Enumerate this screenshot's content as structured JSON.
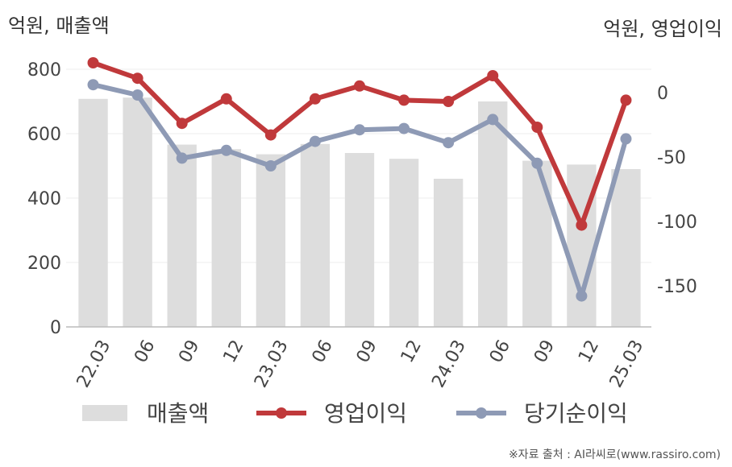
{
  "units": {
    "left": "억원, 매출액",
    "right": "억원, 영업이익"
  },
  "source": "※자료 출처 : AI라씨로(www.rassiro.com)",
  "chart_data": {
    "type": "bar",
    "categories": [
      "22.03",
      "06",
      "09",
      "12",
      "23.03",
      "06",
      "09",
      "12",
      "24.03",
      "06",
      "09",
      "12",
      "25.03"
    ],
    "left_axis": {
      "ylim": [
        0,
        800
      ],
      "ticks": [
        0,
        200,
        400,
        600,
        800
      ]
    },
    "right_axis": {
      "ylim": [
        -182,
        18
      ],
      "ticks": [
        0,
        -50,
        -100,
        -150
      ],
      "tick_labels": [
        "0",
        "-50",
        "-100",
        "-150"
      ]
    },
    "series": [
      {
        "name": "매출액",
        "kind": "bar",
        "axis": "left",
        "color": "#dddddd",
        "values": [
          708,
          712,
          566,
          552,
          536,
          568,
          540,
          522,
          460,
          700,
          516,
          504,
          490
        ]
      },
      {
        "name": "영업이익",
        "kind": "line",
        "axis": "right",
        "color": "#c0393b",
        "values": [
          23,
          11,
          -24,
          -5,
          -33,
          -5,
          5,
          -6,
          -7,
          13,
          -27,
          -103,
          -6
        ]
      },
      {
        "name": "당기순이익",
        "kind": "line",
        "axis": "right",
        "color": "#8e9ab5",
        "values": [
          6,
          -2,
          -51,
          -45,
          -57,
          -38,
          -29,
          -28,
          -39,
          -21,
          -55,
          -158,
          -36
        ]
      }
    ],
    "legend": {
      "placement": "bottom"
    },
    "grid": true
  }
}
